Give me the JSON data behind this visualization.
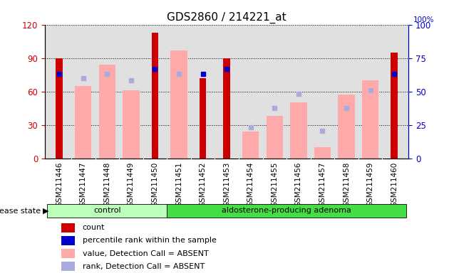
{
  "title": "GDS2860 / 214221_at",
  "samples": [
    "GSM211446",
    "GSM211447",
    "GSM211448",
    "GSM211449",
    "GSM211450",
    "GSM211451",
    "GSM211452",
    "GSM211453",
    "GSM211454",
    "GSM211455",
    "GSM211456",
    "GSM211457",
    "GSM211458",
    "GSM211459",
    "GSM211460"
  ],
  "count": [
    90,
    0,
    0,
    0,
    113,
    0,
    72,
    90,
    0,
    0,
    0,
    0,
    0,
    0,
    95
  ],
  "percentile_rank": [
    76,
    0,
    0,
    0,
    80,
    0,
    76,
    80,
    0,
    0,
    0,
    0,
    0,
    0,
    76
  ],
  "value_absent": [
    0,
    65,
    84,
    61,
    0,
    97,
    0,
    0,
    24,
    38,
    50,
    10,
    57,
    70,
    0
  ],
  "rank_absent": [
    0,
    72,
    76,
    70,
    0,
    76,
    0,
    0,
    28,
    45,
    58,
    25,
    45,
    61,
    0
  ],
  "group_names": [
    "control",
    "aldosterone-producing adenoma"
  ],
  "group_indices": [
    [
      0,
      1,
      2,
      3,
      4
    ],
    [
      5,
      6,
      7,
      8,
      9,
      10,
      11,
      12,
      13,
      14
    ]
  ],
  "group_colors": [
    "#bbffbb",
    "#44dd44"
  ],
  "ylim_left": [
    0,
    120
  ],
  "ylim_right": [
    0,
    100
  ],
  "yticks_left": [
    0,
    30,
    60,
    90,
    120
  ],
  "yticks_right": [
    0,
    25,
    50,
    75,
    100
  ],
  "color_count": "#cc0000",
  "color_rank": "#0000cc",
  "color_value_absent": "#ffaaaa",
  "color_rank_absent": "#aaaadd",
  "ylabel_left_color": "#cc0000",
  "ylabel_right_color": "#0000cc",
  "legend_items": [
    [
      "#cc0000",
      "count"
    ],
    [
      "#0000cc",
      "percentile rank within the sample"
    ],
    [
      "#ffaaaa",
      "value, Detection Call = ABSENT"
    ],
    [
      "#aaaadd",
      "rank, Detection Call = ABSENT"
    ]
  ]
}
